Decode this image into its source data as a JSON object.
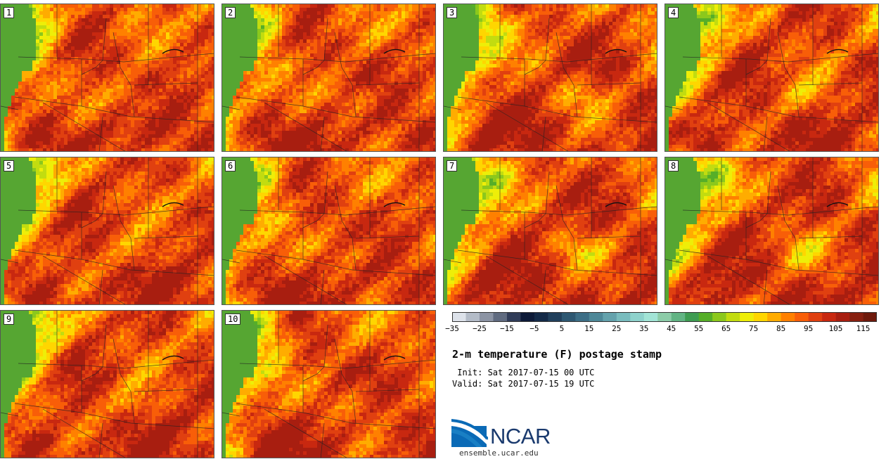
{
  "panels": [
    {
      "label": "1",
      "seed": 11
    },
    {
      "label": "2",
      "seed": 23
    },
    {
      "label": "3",
      "seed": 37
    },
    {
      "label": "4",
      "seed": 41
    },
    {
      "label": "5",
      "seed": 53
    },
    {
      "label": "6",
      "seed": 67
    },
    {
      "label": "7",
      "seed": 71
    },
    {
      "label": "8",
      "seed": 83
    },
    {
      "label": "9",
      "seed": 97
    },
    {
      "label": "10",
      "seed": 101
    }
  ],
  "colorbar": {
    "colors": [
      "#dde2ea",
      "#b4bcc8",
      "#8c94a4",
      "#606b80",
      "#303c58",
      "#0d1a38",
      "#142a48",
      "#21405c",
      "#2e5872",
      "#3d6e86",
      "#4e8898",
      "#64a2ac",
      "#79bcbe",
      "#8ed2cc",
      "#a2e4d6",
      "#8ccca8",
      "#62b484",
      "#3e9c52",
      "#56ae28",
      "#8cc81c",
      "#c2dc10",
      "#eeee08",
      "#ffd600",
      "#ffac00",
      "#ff8000",
      "#f85e08",
      "#e04010",
      "#c82810",
      "#a81e10",
      "#882010",
      "#6e1a0c"
    ],
    "ticks": [
      "−35",
      "−25",
      "−15",
      "−5",
      "5",
      "15",
      "25",
      "35",
      "45",
      "55",
      "65",
      "75",
      "85",
      "95",
      "105",
      "115"
    ]
  },
  "title": "2-m temperature (F) postage stamp",
  "init": " Init: Sat 2017-07-15 00 UTC",
  "valid": "Valid: Sat 2017-07-15 19 UTC",
  "logo": {
    "text": "NCAR",
    "url": "ensemble.ucar.edu"
  }
}
